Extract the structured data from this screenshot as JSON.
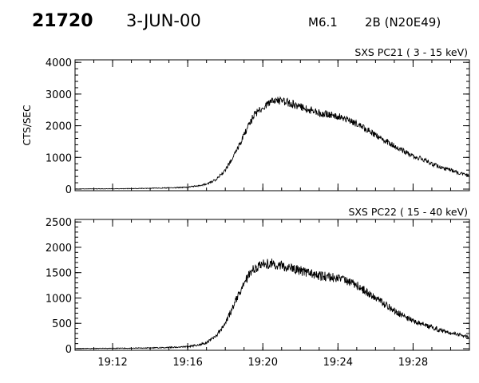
{
  "header": {
    "event_id": "21720",
    "date": "3-JUN-00",
    "flare_class": "M6.1",
    "flare_info": "2B (N20E49)"
  },
  "chart_data": [
    {
      "type": "line",
      "title": "SXS PC21  (  3 - 15 keV)",
      "ylabel": "CTS/SEC",
      "xlabel": "",
      "xlim": [
        "19:10",
        "19:31"
      ],
      "ylim": [
        0,
        4000
      ],
      "yticks": [
        0,
        1000,
        2000,
        3000,
        4000
      ],
      "xticks": [
        "19:12",
        "19:16",
        "19:20",
        "19:24",
        "19:28"
      ],
      "grid": false,
      "series": [
        {
          "x": [
            "19:10",
            "19:11",
            "19:12",
            "19:13",
            "19:14",
            "19:15",
            "19:16",
            "19:16:30",
            "19:17",
            "19:17:30",
            "19:18",
            "19:18:30",
            "19:19",
            "19:19:30",
            "19:20",
            "19:20:30",
            "19:21",
            "19:21:30",
            "19:22",
            "19:22:30",
            "19:23",
            "19:23:30",
            "19:24",
            "19:24:30",
            "19:25",
            "19:25:30",
            "19:26",
            "19:26:30",
            "19:27",
            "19:27:30",
            "19:28",
            "19:28:30",
            "19:29",
            "19:29:30",
            "19:30",
            "19:30:30",
            "19:31"
          ],
          "values": [
            5,
            8,
            10,
            15,
            25,
            40,
            60,
            100,
            150,
            300,
            600,
            1100,
            1700,
            2300,
            2600,
            2750,
            2800,
            2700,
            2600,
            2500,
            2400,
            2350,
            2300,
            2200,
            2050,
            1900,
            1700,
            1550,
            1350,
            1200,
            1050,
            950,
            800,
            700,
            600,
            500,
            420
          ]
        }
      ]
    },
    {
      "type": "line",
      "title": "SXS PC22  ( 15 - 40 keV)",
      "ylabel": "",
      "xlabel": "",
      "xlim": [
        "19:10",
        "19:31"
      ],
      "ylim": [
        0,
        2500
      ],
      "yticks": [
        0,
        500,
        1000,
        1500,
        2000,
        2500
      ],
      "xticks": [
        "19:12",
        "19:16",
        "19:20",
        "19:24",
        "19:28"
      ],
      "grid": false,
      "series": [
        {
          "x": [
            "19:10",
            "19:11",
            "19:12",
            "19:13",
            "19:14",
            "19:15",
            "19:16",
            "19:16:30",
            "19:17",
            "19:17:30",
            "19:18",
            "19:18:30",
            "19:19",
            "19:19:30",
            "19:20",
            "19:20:30",
            "19:21",
            "19:21:30",
            "19:22",
            "19:22:30",
            "19:23",
            "19:23:30",
            "19:24",
            "19:24:30",
            "19:25",
            "19:25:30",
            "19:26",
            "19:26:30",
            "19:27",
            "19:27:30",
            "19:28",
            "19:28:30",
            "19:29",
            "19:29:30",
            "19:30",
            "19:30:30",
            "19:31"
          ],
          "values": [
            5,
            6,
            8,
            10,
            15,
            25,
            40,
            70,
            120,
            250,
            500,
            900,
            1300,
            1580,
            1660,
            1680,
            1640,
            1600,
            1540,
            1480,
            1440,
            1420,
            1390,
            1330,
            1250,
            1130,
            1000,
            870,
            750,
            640,
            560,
            480,
            420,
            360,
            310,
            270,
            230
          ]
        }
      ]
    }
  ]
}
